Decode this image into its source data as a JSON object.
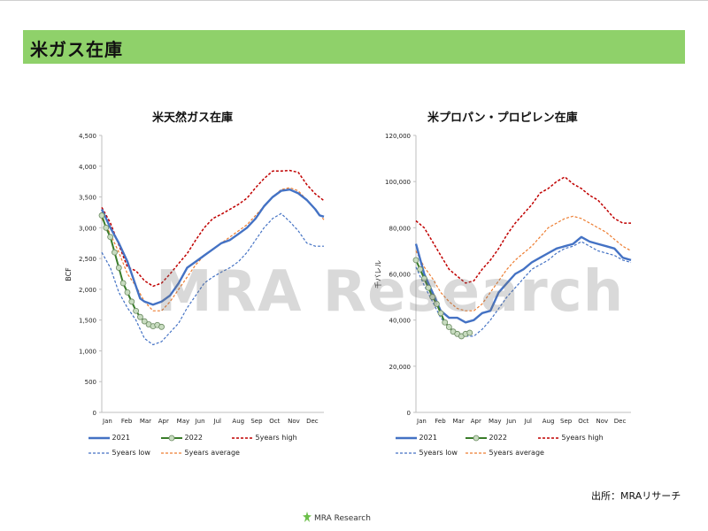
{
  "header": {
    "title": "米ガス在庫"
  },
  "source_note": "出所：MRAリサーチ",
  "watermark": "MRA Research",
  "footer_logo": "MRA Research",
  "colors": {
    "header_bg": "#8fd16a",
    "series_2021": "#4472c4",
    "series_2022": "#3a7d2a",
    "series_2022_marker": "#c8dcc0",
    "series_high": "#c00000",
    "series_low": "#4472c4",
    "series_avg": "#ed7d31"
  },
  "legend": {
    "s2021": "2021",
    "s2022": "2022",
    "high": "5years high",
    "low": "5years low",
    "avg": "5years average"
  },
  "chart_data": [
    {
      "type": "line",
      "title": "米天然ガス在庫",
      "ylabel": "BCF",
      "ylim": [
        0,
        4500
      ],
      "yticks": [
        0,
        500,
        1000,
        1500,
        2000,
        2500,
        3000,
        3500,
        4000,
        4500
      ],
      "ytick_labels": [
        "0",
        "500",
        "1,000",
        "1,500",
        "2,000",
        "2,500",
        "3,000",
        "3,500",
        "4,000",
        "4,500"
      ],
      "xlim": [
        0,
        52
      ],
      "month_labels": [
        "Jan",
        "Feb",
        "Mar",
        "Apr",
        "May",
        "Jun",
        "Jul",
        "Aug",
        "Sep",
        "Oct",
        "Nov",
        "Dec"
      ],
      "series": [
        {
          "name": "2021",
          "style": "solid",
          "x": [
            0,
            2,
            4,
            6,
            8,
            9,
            10,
            12,
            14,
            16,
            18,
            20,
            22,
            24,
            26,
            28,
            30,
            32,
            34,
            36,
            38,
            40,
            42,
            44,
            46,
            48,
            50,
            51,
            52
          ],
          "y": [
            3300,
            3000,
            2750,
            2450,
            2050,
            1850,
            1800,
            1750,
            1800,
            1900,
            2100,
            2350,
            2450,
            2550,
            2650,
            2750,
            2800,
            2900,
            3000,
            3150,
            3350,
            3500,
            3600,
            3620,
            3560,
            3450,
            3300,
            3200,
            3180
          ]
        },
        {
          "name": "2022",
          "style": "marker",
          "x": [
            0,
            1,
            2,
            3,
            4,
            5,
            6,
            7,
            8,
            9,
            10,
            11,
            12,
            13,
            14
          ],
          "y": [
            3200,
            3000,
            2850,
            2600,
            2350,
            2100,
            1950,
            1800,
            1650,
            1550,
            1480,
            1430,
            1400,
            1420,
            1390
          ]
        },
        {
          "name": "5years high",
          "style": "dashed",
          "x": [
            0,
            2,
            4,
            6,
            8,
            10,
            12,
            14,
            16,
            18,
            20,
            22,
            24,
            26,
            28,
            30,
            32,
            34,
            36,
            38,
            40,
            42,
            44,
            46,
            48,
            50,
            52
          ],
          "y": [
            3330,
            3080,
            2720,
            2360,
            2300,
            2140,
            2050,
            2100,
            2250,
            2420,
            2580,
            2800,
            3000,
            3150,
            3220,
            3300,
            3380,
            3480,
            3650,
            3800,
            3920,
            3920,
            3930,
            3900,
            3700,
            3550,
            3440
          ]
        },
        {
          "name": "5years low",
          "style": "dashed",
          "x": [
            0,
            2,
            4,
            6,
            8,
            10,
            12,
            14,
            16,
            18,
            20,
            22,
            24,
            26,
            28,
            30,
            32,
            34,
            36,
            38,
            40,
            42,
            44,
            46,
            48,
            50,
            52
          ],
          "y": [
            2600,
            2350,
            1950,
            1700,
            1500,
            1200,
            1100,
            1150,
            1300,
            1450,
            1700,
            1900,
            2100,
            2200,
            2280,
            2350,
            2450,
            2600,
            2800,
            3000,
            3150,
            3230,
            3100,
            2950,
            2750,
            2700,
            2700
          ]
        },
        {
          "name": "5years average",
          "style": "dashed",
          "x": [
            0,
            2,
            4,
            6,
            8,
            10,
            12,
            14,
            16,
            18,
            20,
            22,
            24,
            26,
            28,
            30,
            32,
            34,
            36,
            38,
            40,
            42,
            44,
            46,
            48,
            50,
            52
          ],
          "y": [
            3150,
            2900,
            2600,
            2250,
            2050,
            1800,
            1650,
            1650,
            1800,
            2000,
            2200,
            2400,
            2550,
            2650,
            2750,
            2850,
            2950,
            3050,
            3200,
            3350,
            3500,
            3620,
            3650,
            3600,
            3450,
            3300,
            3130
          ]
        }
      ]
    },
    {
      "type": "line",
      "title": "米プロパン・プロピレン在庫",
      "ylabel": "千バレル",
      "ylim": [
        0,
        120000
      ],
      "yticks": [
        0,
        20000,
        40000,
        60000,
        80000,
        100000,
        120000
      ],
      "ytick_labels": [
        "0",
        "20,000",
        "40,000",
        "60,000",
        "80,000",
        "100,000",
        "120,000"
      ],
      "xlim": [
        0,
        52
      ],
      "month_labels": [
        "Jan",
        "Feb",
        "Mar",
        "Apr",
        "May",
        "Jun",
        "Jul",
        "Aug",
        "Sep",
        "Oct",
        "Nov",
        "Dec"
      ],
      "series": [
        {
          "name": "2021",
          "style": "solid",
          "x": [
            0,
            2,
            4,
            6,
            8,
            10,
            12,
            14,
            16,
            18,
            20,
            22,
            24,
            26,
            28,
            30,
            32,
            34,
            36,
            38,
            40,
            42,
            44,
            46,
            48,
            50,
            52
          ],
          "y": [
            73000,
            60000,
            52000,
            44000,
            41000,
            41000,
            39000,
            40000,
            43000,
            44000,
            52000,
            56000,
            60000,
            62000,
            65000,
            67000,
            69000,
            71000,
            72000,
            73000,
            76000,
            74000,
            73000,
            72000,
            71000,
            67000,
            66000
          ]
        },
        {
          "name": "2022",
          "style": "marker",
          "x": [
            0,
            1,
            2,
            3,
            4,
            5,
            6,
            7,
            8,
            9,
            10,
            11,
            12,
            13
          ],
          "y": [
            66000,
            62000,
            58000,
            54000,
            50000,
            47000,
            43000,
            39000,
            37000,
            35000,
            34000,
            33000,
            34000,
            34500
          ]
        },
        {
          "name": "5years high",
          "style": "dashed",
          "x": [
            0,
            2,
            4,
            6,
            8,
            10,
            12,
            14,
            16,
            18,
            20,
            22,
            24,
            26,
            28,
            30,
            32,
            34,
            36,
            38,
            40,
            42,
            44,
            46,
            48,
            50,
            52
          ],
          "y": [
            83000,
            80000,
            74000,
            68000,
            62000,
            59000,
            56000,
            57000,
            62000,
            66000,
            71000,
            77000,
            82000,
            86000,
            90000,
            95000,
            97000,
            100000,
            102000,
            99000,
            97000,
            94000,
            92000,
            88000,
            84000,
            82000,
            82000
          ]
        },
        {
          "name": "5years low",
          "style": "dashed",
          "x": [
            0,
            2,
            4,
            6,
            8,
            10,
            12,
            14,
            16,
            18,
            20,
            22,
            24,
            26,
            28,
            30,
            32,
            34,
            36,
            38,
            40,
            42,
            44,
            46,
            48,
            50,
            52
          ],
          "y": [
            63000,
            55000,
            48000,
            41000,
            37000,
            34000,
            33000,
            33000,
            36000,
            40000,
            45000,
            50000,
            54000,
            58000,
            62000,
            64000,
            66000,
            69000,
            71000,
            72000,
            74000,
            72000,
            70000,
            69000,
            68000,
            66000,
            65000
          ]
        },
        {
          "name": "5years average",
          "style": "dashed",
          "x": [
            0,
            2,
            4,
            6,
            8,
            10,
            12,
            14,
            16,
            18,
            20,
            22,
            24,
            26,
            28,
            30,
            32,
            34,
            36,
            38,
            40,
            42,
            44,
            46,
            48,
            50,
            52
          ],
          "y": [
            70000,
            63000,
            58000,
            52000,
            48000,
            45000,
            44000,
            44000,
            47000,
            52000,
            57000,
            62000,
            66000,
            69000,
            72000,
            76000,
            80000,
            82000,
            84000,
            85000,
            84000,
            82000,
            80000,
            78000,
            75000,
            72000,
            70000
          ]
        }
      ]
    }
  ]
}
